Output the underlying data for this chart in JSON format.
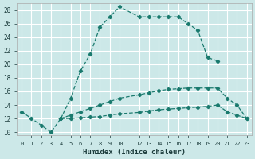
{
  "xlabel": "Humidex (Indice chaleur)",
  "bg_color": "#cce8e8",
  "grid_color": "#ffffff",
  "line_color": "#1a7a6e",
  "xlim": [
    -0.5,
    23.5
  ],
  "ylim": [
    9.5,
    29.0
  ],
  "xtick_positions": [
    0,
    1,
    2,
    3,
    4,
    5,
    6,
    7,
    8,
    9,
    10,
    12,
    13,
    14,
    15,
    16,
    17,
    18,
    19,
    20,
    21,
    22,
    23
  ],
  "ytick_positions": [
    10,
    12,
    14,
    16,
    18,
    20,
    22,
    24,
    26,
    28
  ],
  "curve1_x": [
    0,
    1,
    2,
    3,
    4,
    5,
    6,
    7,
    8,
    9,
    10,
    12,
    13,
    14,
    15,
    16,
    17,
    18,
    19,
    20
  ],
  "curve1_y": [
    13.0,
    12.0,
    11.0,
    10.0,
    12.0,
    15.0,
    19.0,
    21.5,
    25.5,
    27.0,
    28.5,
    27.0,
    27.0,
    27.0,
    27.0,
    27.0,
    26.0,
    25.0,
    21.0,
    20.5
  ],
  "curve2_x": [
    4,
    5,
    6,
    7,
    8,
    9,
    10,
    12,
    13,
    14,
    15,
    16,
    17,
    18,
    19,
    20,
    21,
    22,
    23
  ],
  "curve2_y": [
    12.0,
    12.5,
    13.0,
    13.5,
    14.0,
    14.5,
    15.0,
    15.5,
    15.8,
    16.1,
    16.3,
    16.4,
    16.5,
    16.5,
    16.5,
    16.5,
    15.0,
    14.0,
    12.0
  ],
  "curve3_x": [
    4,
    5,
    6,
    7,
    8,
    9,
    10,
    12,
    13,
    14,
    15,
    16,
    17,
    18,
    19,
    20,
    21,
    22,
    23
  ],
  "curve3_y": [
    12.0,
    12.0,
    12.1,
    12.2,
    12.3,
    12.5,
    12.7,
    12.9,
    13.1,
    13.3,
    13.4,
    13.5,
    13.6,
    13.7,
    13.8,
    14.0,
    13.0,
    12.5,
    12.0
  ]
}
